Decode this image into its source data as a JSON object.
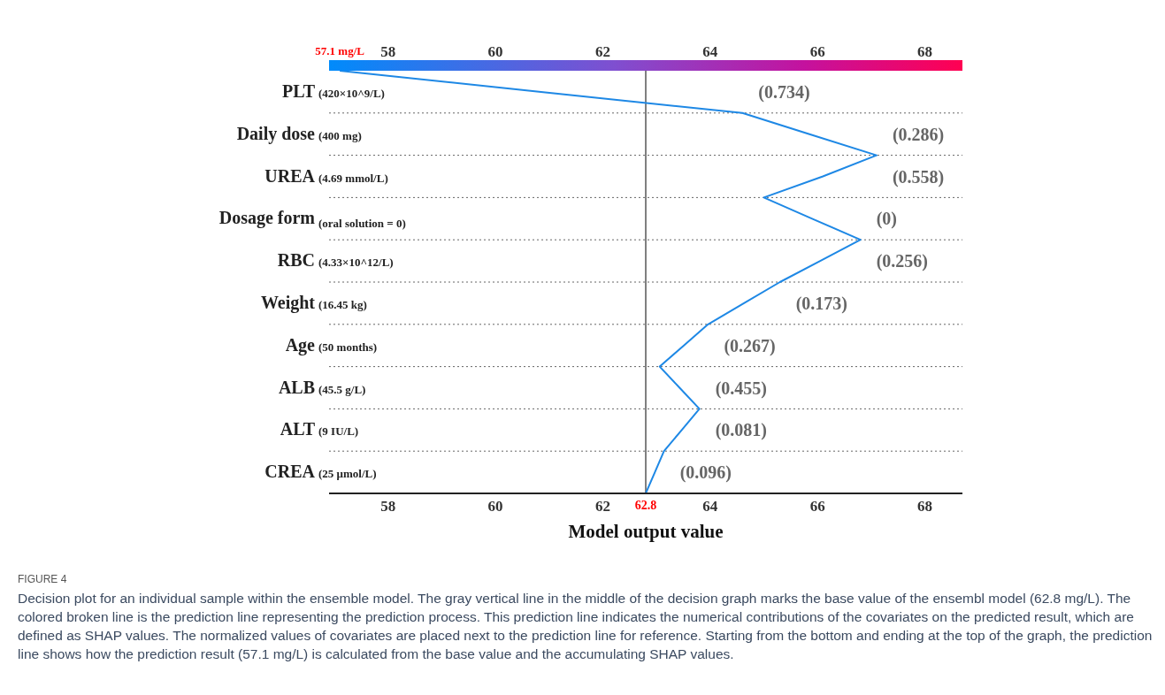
{
  "chart_data": {
    "type": "line",
    "orientation": "horizontal",
    "categories": [
      null,
      "PLT (420×10^9/L)",
      null,
      "Daily dose (400 mg)",
      null,
      "UREA (4.69 mmol/L)",
      null,
      "Dosage form (oral solution = 0)",
      null,
      "RBC (4.33×10^12/L)",
      null,
      "Weight (16.45 kg)",
      null,
      "Age (50 months)",
      null,
      "ALB (45.5  g/L)",
      null,
      "ALT (9 IU/L)",
      null,
      "CREA (25 μmol/L)",
      null
    ],
    "series": [
      {
        "color": "#1e88e5",
        "values": [
          57.1,
          60.85,
          64.6,
          65.85,
          67.1,
          66.1,
          65.0,
          65.9,
          66.8,
          66.05,
          65.3,
          64.63,
          63.96,
          63.51,
          63.06,
          63.43,
          63.8,
          63.47,
          63.14,
          62.97,
          62.8
        ]
      }
    ],
    "xlabel": "Model output value",
    "xlim": [
      56.9,
      68.7
    ],
    "xticks": [
      58,
      60,
      62,
      64,
      66,
      68
    ],
    "x2lim": [
      56.9,
      68.7
    ],
    "x2ticks": [
      58,
      60,
      62,
      64,
      66,
      68
    ],
    "ref_lines": [
      {
        "axis": "x",
        "value": 62.8,
        "label": "62.8",
        "color": "#808080"
      }
    ],
    "grid": "y",
    "marker": "none",
    "line_style": "solid",
    "annotations": [
      "57.1 mg/L",
      "(0.734)",
      "(0.286)",
      "(0.558)",
      "(0)",
      "(0.256)",
      "(0.173)",
      "(0.267)",
      "(0.455)",
      "(0.081)",
      "(0.096)",
      "FIGURE 4",
      "Decision plot for an individual sample within the ensemble model. The gray vertical line in the middle of the decision graph marks the base value of the ensembl model (62.8 mg/L). The colored broken line is the prediction line representing the prediction process. This prediction line indicates the numerical contributions of the covariates on the predicted result, which are defined as SHAP values. The normalized values of covariates are placed next to the prediction line for reference. Starting from the bottom and ending at the top of the graph, the prediction line shows how the prediction result (57.1 mg/L) is calculated from the base value and the accumulating SHAP values."
    ]
  }
}
